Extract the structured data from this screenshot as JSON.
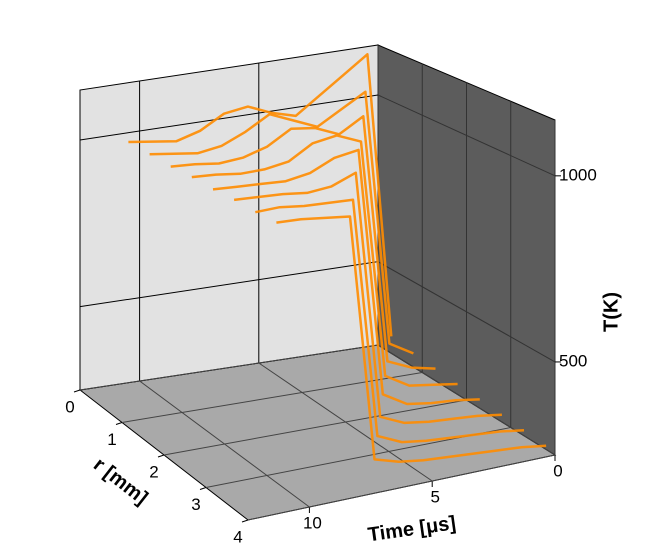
{
  "chart_data": {
    "type": "line3d",
    "x_label": "Time [μs]",
    "y_label": "r [mm]",
    "z_label": "T(K)",
    "x": [
      0,
      1,
      2,
      3,
      4,
      5,
      6,
      7,
      8,
      9,
      10,
      11
    ],
    "xlim": [
      0,
      12.5
    ],
    "xticks": [
      0,
      5,
      10
    ],
    "ylim": [
      0,
      4
    ],
    "yticks": [
      0,
      1,
      2,
      3,
      4
    ],
    "zlim": [
      250,
      1150
    ],
    "zticks": [
      500,
      1000
    ],
    "grid": true,
    "series": [
      {
        "r": 0.3,
        "color": "#ff8c00",
        "values": [
          300,
          1150,
          1100,
          1050,
          1000,
          1020,
          1050,
          1040,
          1000,
          980,
          990,
          1000
        ]
      },
      {
        "r": 0.8,
        "color": "#ff8c00",
        "values": [
          290,
          330,
          1080,
          1040,
          1000,
          1030,
          1060,
          1020,
          990,
          980,
          990,
          1000
        ]
      },
      {
        "r": 1.3,
        "color": "#ff8c00",
        "values": [
          285,
          300,
          330,
          1050,
          1010,
          1040,
          1050,
          1010,
          990,
          985,
          995,
          1000
        ]
      },
      {
        "r": 1.8,
        "color": "#ff8c00",
        "values": [
          280,
          290,
          300,
          340,
          1020,
          1050,
          1040,
          1000,
          990,
          990,
          1000,
          1005
        ]
      },
      {
        "r": 2.3,
        "color": "#ff8c00",
        "values": [
          275,
          285,
          290,
          300,
          340,
          1040,
          1030,
          1000,
          990,
          995,
          1000,
          1005
        ]
      },
      {
        "r": 2.8,
        "color": "#ff8c00",
        "values": [
          270,
          280,
          285,
          290,
          300,
          330,
          1020,
          995,
          990,
          1000,
          1005,
          1010
        ]
      },
      {
        "r": 3.3,
        "color": "#ff8c00",
        "values": [
          265,
          275,
          280,
          285,
          290,
          300,
          330,
          990,
          995,
          1000,
          1010,
          1010
        ]
      },
      {
        "r": 3.8,
        "color": "#ff8c00",
        "values": [
          260,
          270,
          275,
          280,
          285,
          290,
          300,
          320,
          990,
          1000,
          1010,
          1015
        ]
      }
    ]
  }
}
